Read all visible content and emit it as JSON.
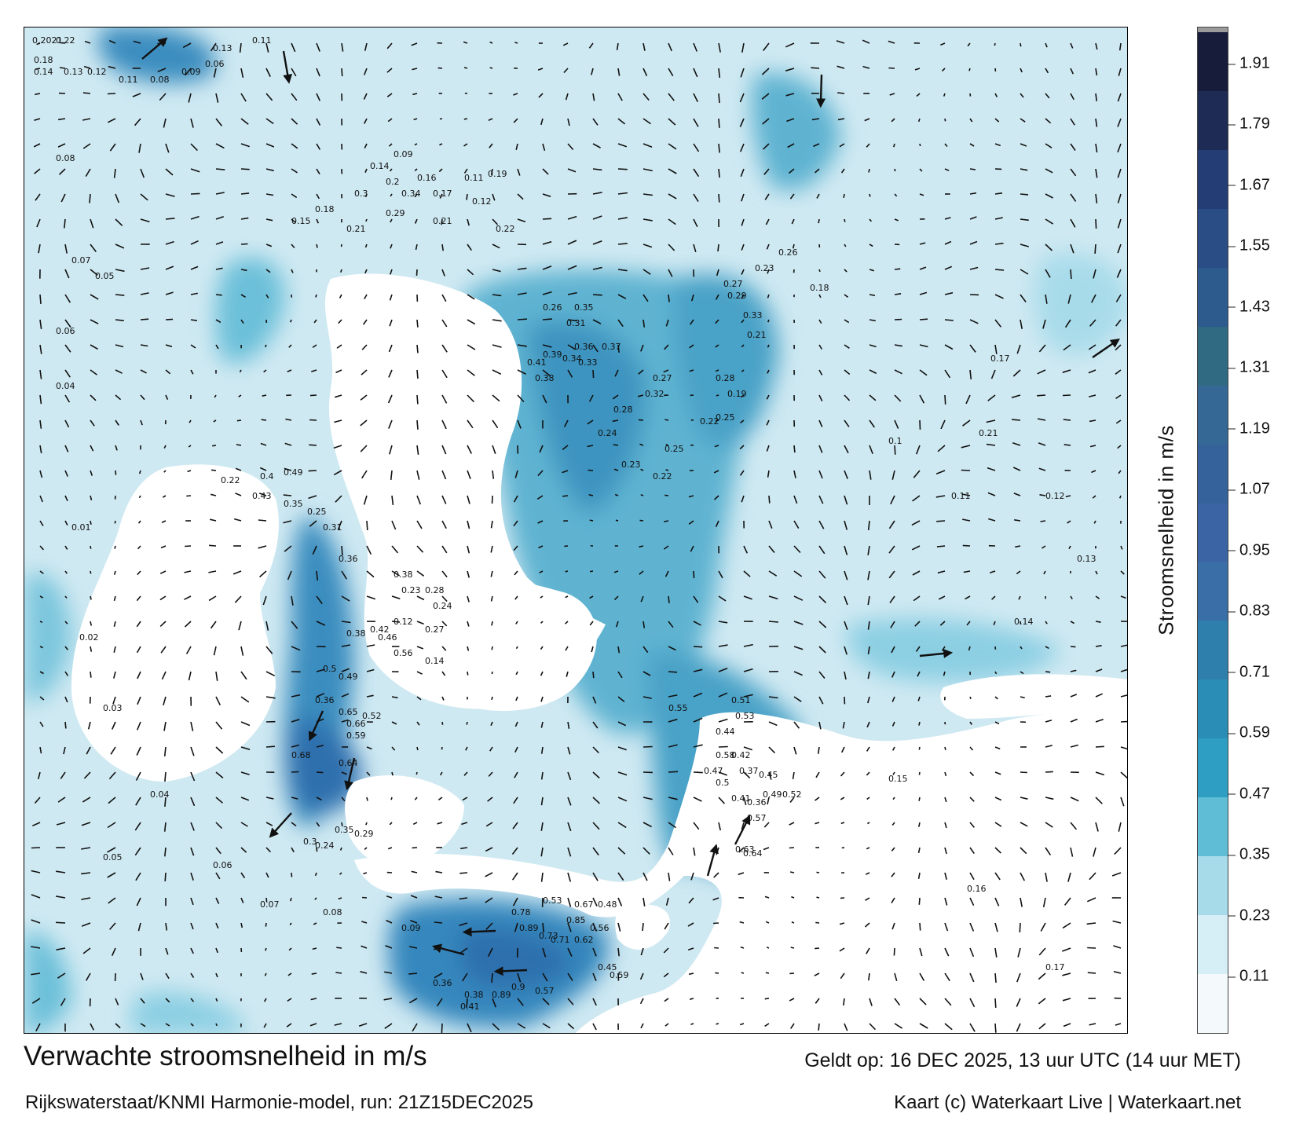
{
  "map": {
    "title": "Verwachte stroomsnelheid in m/s",
    "model_run": "Rijkswaterstaat/KNMI Harmonie-model, run: 21Z15DEC2025",
    "valid_time": "Geldt op: 16 DEC 2025, 13 uur UTC (14 uur MET)",
    "credit": "Kaart (c) Waterkaart Live | Waterkaart.net",
    "colors": {
      "land": "#ffffff",
      "frame": "#000000",
      "arrow": "#111111"
    }
  },
  "colorbar": {
    "label": "Stroomsnelheid in m/s",
    "ticks": [
      "0.11",
      "0.23",
      "0.35",
      "0.47",
      "0.59",
      "0.71",
      "0.83",
      "0.95",
      "1.07",
      "1.19",
      "1.31",
      "1.43",
      "1.55",
      "1.67",
      "1.79",
      "1.91"
    ],
    "colors": [
      "#f4fafc",
      "#d6eef5",
      "#a8dbea",
      "#5fbdd6",
      "#2e9fc2",
      "#2a8db5",
      "#2f7fad",
      "#3a6ea6",
      "#3a64a3",
      "#36629c",
      "#356894",
      "#2f6a82",
      "#2d5b8e",
      "#2a4d85",
      "#243d74",
      "#1e2b55",
      "#161c3a"
    ]
  },
  "current_labels": [
    {
      "text": "0.2021",
      "t": "0.22",
      "c": "0.13"
    },
    {
      "text": "0.18",
      "t": "0.14",
      "c": "0.13"
    }
  ],
  "labels": {
    "northwest": [
      "0.2021",
      "0.22",
      "0.18",
      "0.14",
      "0.13",
      "0.12",
      "0.11",
      "0.08",
      "0.09",
      "0.06",
      "0.08",
      "0.07",
      "0.05",
      "0.06",
      "0.04",
      "0.13",
      "0.11"
    ],
    "estuary_west": [
      "0.15",
      "0.18",
      "0.21",
      "0.29",
      "0.34",
      "0.17",
      "0.12",
      "0.11",
      "0.19",
      "0.22",
      "0.3",
      "0.21",
      "0.16",
      "0.2",
      "0.14",
      "0.09"
    ],
    "oosterschelde": [
      "0.22",
      "0.4",
      "0.49",
      "0.43",
      "0.35",
      "0.25",
      "0.31",
      "0.36",
      "0.38",
      "0.28",
      "0.24",
      "0.27",
      "0.23",
      "0.12",
      "0.14"
    ],
    "westerschelde": [
      "0.68",
      "0.64",
      "0.65",
      "0.66",
      "0.59",
      "0.52",
      "0.5",
      "0.49",
      "0.36",
      "0.42",
      "0.46",
      "0.56",
      "0.38",
      "0.35",
      "0.29",
      "0.3",
      "0.24"
    ],
    "north_channel": [
      "0.41",
      "0.39",
      "0.38",
      "0.34",
      "0.36",
      "0.33",
      "0.31",
      "0.35",
      "0.37",
      "0.26",
      "0.24",
      "0.28",
      "0.32",
      "0.27",
      "0.23",
      "0.25",
      "0.22"
    ],
    "east_channels": [
      "0.33",
      "0.29",
      "0.21",
      "0.18",
      "0.26",
      "0.27",
      "0.23",
      "0.28",
      "0.19",
      "0.25",
      "0.22",
      "0.21",
      "0.17"
    ],
    "southeast_channel": [
      "0.55",
      "0.51",
      "0.53",
      "0.58",
      "0.44",
      "0.47",
      "0.42",
      "0.5",
      "0.37",
      "0.45",
      "0.41",
      "0.36",
      "0.49",
      "0.52",
      "0.57",
      "0.63",
      "0.64"
    ],
    "south_outlet": [
      "0.78",
      "0.89",
      "0.73",
      "0.71",
      "0.85",
      "0.62",
      "0.56",
      "0.67",
      "0.53",
      "0.48",
      "0.45",
      "0.59",
      "0.57",
      "0.9",
      "0.89",
      "0.38",
      "0.41",
      "0.36"
    ],
    "scattered": [
      "0.01",
      "0.02",
      "0.03",
      "0.04",
      "0.05",
      "0.06",
      "0.07",
      "0.08",
      "0.09",
      "0.1",
      "0.11",
      "0.12",
      "0.13",
      "0.14",
      "0.15",
      "0.16",
      "0.17"
    ]
  }
}
